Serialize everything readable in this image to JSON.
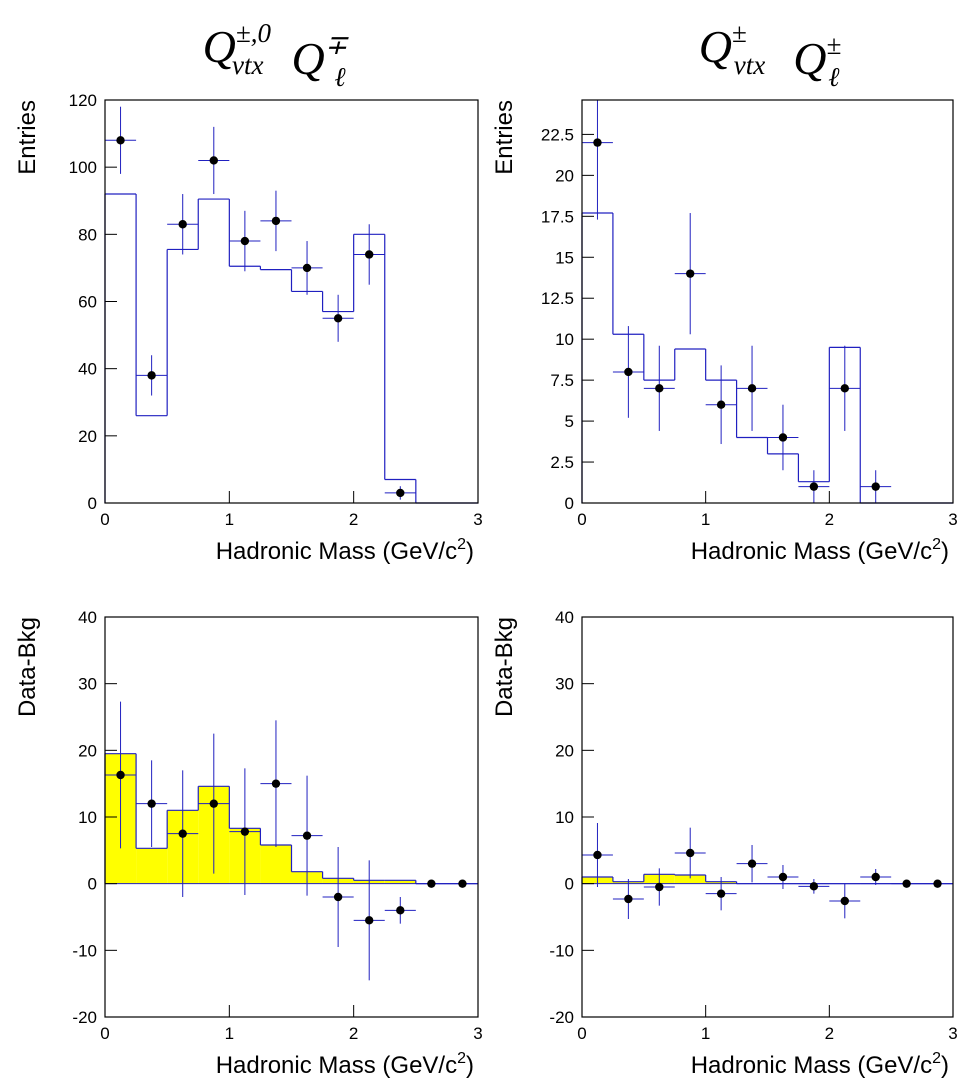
{
  "chart_data": [
    {
      "type": "histogram",
      "title_parts": [
        {
          "base": "Q",
          "sup": "±,0",
          "sub": "vtx"
        },
        {
          "base": "Q",
          "sup": "∓",
          "sub": "ℓ"
        }
      ],
      "ylabel": "Entries",
      "xlabel": {
        "text": "Hadronic Mass (GeV/c",
        "sup": "2",
        "close": ")"
      },
      "xlim": [
        0,
        3
      ],
      "ylim": [
        0,
        120
      ],
      "xticks": [
        0,
        1,
        2,
        3
      ],
      "yticks": [
        0,
        20,
        40,
        60,
        80,
        100,
        120
      ],
      "bins": [
        0,
        0.25,
        0.5,
        0.75,
        1,
        1.25,
        1.5,
        1.75,
        2,
        2.25,
        2.5,
        2.75,
        3
      ],
      "counts": [
        92,
        26,
        75.5,
        90.5,
        70.5,
        69.5,
        63,
        57,
        80,
        7,
        0,
        0
      ],
      "color": "#2020c0",
      "fill": null,
      "points": {
        "x": [
          0.125,
          0.375,
          0.625,
          0.875,
          1.125,
          1.375,
          1.625,
          1.875,
          2.125,
          2.375
        ],
        "values": [
          108,
          38,
          83,
          102,
          78,
          84,
          70,
          55,
          74,
          3
        ],
        "errors": [
          10,
          6,
          9,
          10,
          9,
          9,
          8,
          7,
          9,
          2
        ]
      }
    },
    {
      "type": "histogram",
      "title_parts": [
        {
          "base": "Q",
          "sup": "±",
          "sub": "vtx"
        },
        {
          "base": "Q",
          "sup": "±",
          "sub": "ℓ"
        }
      ],
      "ylabel": "Entries",
      "xlabel": {
        "text": "Hadronic Mass (GeV/c",
        "sup": "2",
        "close": ")"
      },
      "xlim": [
        0,
        3
      ],
      "ylim": [
        0,
        24.6
      ],
      "xticks": [
        0,
        1,
        2,
        3
      ],
      "yticks": [
        0,
        2.5,
        5,
        7.5,
        10,
        12.5,
        15,
        17.5,
        20,
        22.5
      ],
      "bins": [
        0,
        0.25,
        0.5,
        0.75,
        1,
        1.25,
        1.5,
        1.75,
        2,
        2.25,
        2.5,
        2.75,
        3
      ],
      "counts": [
        17.7,
        10.3,
        7.5,
        9.4,
        7.5,
        4,
        3,
        1.3,
        9.5,
        0,
        0,
        0
      ],
      "color": "#2020c0",
      "fill": null,
      "points": {
        "x": [
          0.125,
          0.375,
          0.625,
          0.875,
          1.125,
          1.375,
          1.625,
          1.875,
          2.125,
          2.375
        ],
        "values": [
          22,
          8,
          7,
          14,
          6,
          7,
          4,
          1,
          7,
          1
        ],
        "errors": [
          4.7,
          2.8,
          2.6,
          3.7,
          2.4,
          2.6,
          2,
          1,
          2.6,
          1
        ]
      }
    },
    {
      "type": "histogram",
      "ylabel": "Data-Bkg",
      "xlabel": {
        "text": "Hadronic Mass (GeV/c",
        "sup": "2",
        "close": ")"
      },
      "xlim": [
        0,
        3
      ],
      "ylim": [
        -20,
        40
      ],
      "xticks": [
        0,
        1,
        2,
        3
      ],
      "yticks": [
        -20,
        -10,
        0,
        10,
        20,
        30,
        40
      ],
      "bins": [
        0,
        0.25,
        0.5,
        0.75,
        1,
        1.25,
        1.5,
        1.75,
        2,
        2.25,
        2.5,
        2.75,
        3
      ],
      "counts": [
        19.5,
        5.3,
        11,
        14.6,
        8.3,
        5.8,
        1.8,
        0.8,
        0.5,
        0.5,
        0,
        0
      ],
      "color": "#2020c0",
      "fill": "#ffff00",
      "points": {
        "x": [
          0.125,
          0.375,
          0.625,
          0.875,
          1.125,
          1.375,
          1.625,
          1.875,
          2.125,
          2.375,
          2.625,
          2.875
        ],
        "values": [
          16.3,
          12,
          7.5,
          12,
          7.8,
          15,
          7.2,
          -2,
          -5.5,
          -4,
          0,
          0
        ],
        "errors": [
          11,
          6.5,
          9.5,
          10.5,
          9.5,
          9.5,
          9,
          7.5,
          9,
          2,
          0,
          0
        ]
      }
    },
    {
      "type": "histogram",
      "ylabel": "Data-Bkg",
      "xlabel": {
        "text": "Hadronic Mass (GeV/c",
        "sup": "2",
        "close": ")"
      },
      "xlim": [
        0,
        3
      ],
      "ylim": [
        -20,
        40
      ],
      "xticks": [
        0,
        1,
        2,
        3
      ],
      "yticks": [
        -20,
        -10,
        0,
        10,
        20,
        30,
        40
      ],
      "bins": [
        0,
        0.25,
        0.5,
        0.75,
        1,
        1.25,
        1.5,
        1.75,
        2,
        2.25,
        2.5,
        2.75,
        3
      ],
      "counts": [
        1,
        0.3,
        1.4,
        1.3,
        0.3,
        0,
        0,
        0,
        0,
        0,
        0,
        0
      ],
      "color": "#2020c0",
      "fill": "#ffff00",
      "points": {
        "x": [
          0.125,
          0.375,
          0.625,
          0.875,
          1.125,
          1.375,
          1.625,
          1.875,
          2.125,
          2.375,
          2.625,
          2.875
        ],
        "values": [
          4.3,
          -2.3,
          -0.5,
          4.6,
          -1.5,
          3,
          1,
          -0.4,
          -2.6,
          1,
          0,
          0
        ],
        "errors": [
          4.8,
          3,
          2.8,
          3.8,
          2.5,
          2.8,
          1.8,
          1.1,
          2.6,
          1.2,
          0,
          0
        ]
      }
    }
  ]
}
